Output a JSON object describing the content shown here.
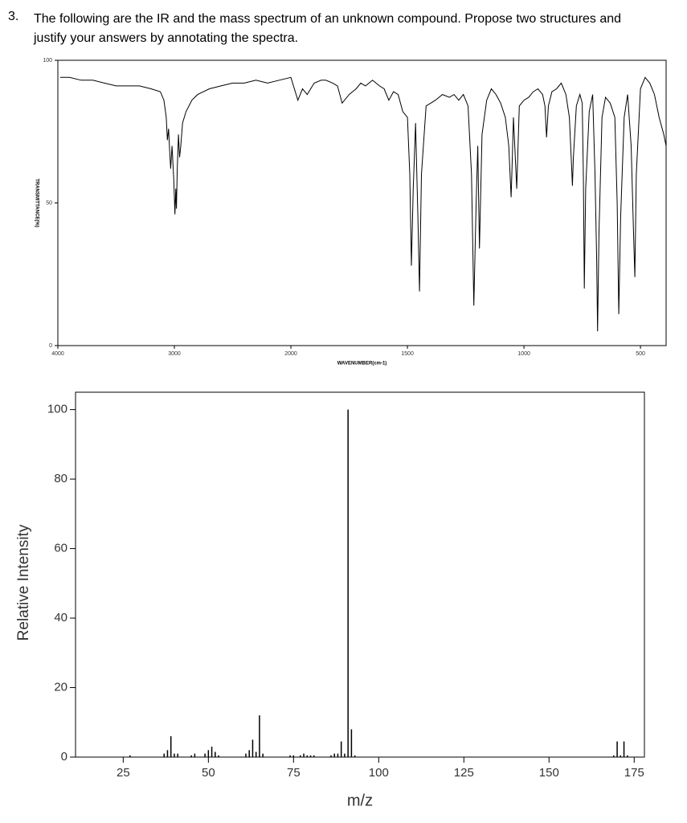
{
  "question_number": "3.",
  "question": "The following are the IR and the mass spectrum of an unknown compound. Propose two structures and justify your answers by annotating the spectra.",
  "chart_data": [
    {
      "type": "line",
      "xlabel": "WAVENUMBER(cm-1)",
      "ylabel": "TRANSMITTANCE(%)",
      "xlim": [
        4000,
        390
      ],
      "ylim": [
        0,
        100
      ],
      "xticks": [
        4000,
        3000,
        2000,
        1500,
        1000,
        500
      ],
      "yticks": [
        0,
        50,
        100
      ],
      "color": "#000000",
      "series": [
        {
          "name": "IR",
          "color": "#000000",
          "x": [
            3980,
            3900,
            3800,
            3700,
            3600,
            3500,
            3400,
            3300,
            3200,
            3120,
            3090,
            3070,
            3060,
            3050,
            3040,
            3032,
            3020,
            3005,
            2995,
            2988,
            2982,
            2975,
            2965,
            2955,
            2945,
            2930,
            2900,
            2850,
            2800,
            2700,
            2600,
            2500,
            2400,
            2300,
            2200,
            2100,
            2000,
            1970,
            1950,
            1930,
            1900,
            1870,
            1850,
            1820,
            1800,
            1780,
            1750,
            1720,
            1700,
            1680,
            1650,
            1620,
            1600,
            1580,
            1560,
            1540,
            1520,
            1500,
            1490,
            1483,
            1475,
            1465,
            1455,
            1448,
            1440,
            1420,
            1400,
            1380,
            1350,
            1320,
            1300,
            1280,
            1260,
            1240,
            1225,
            1215,
            1205,
            1198,
            1191,
            1180,
            1160,
            1140,
            1120,
            1100,
            1080,
            1065,
            1055,
            1052,
            1045,
            1031,
            1020,
            1000,
            980,
            960,
            940,
            920,
            910,
            903,
            895,
            880,
            860,
            840,
            820,
            805,
            795,
            792,
            788,
            775,
            760,
            750,
            745,
            741,
            735,
            720,
            705,
            695,
            688,
            684,
            678,
            665,
            650,
            630,
            610,
            600,
            593,
            585,
            570,
            555,
            540,
            530,
            524,
            518,
            500,
            480,
            460,
            440,
            420,
            400,
            390
          ],
          "values": [
            94,
            94,
            93,
            93,
            92,
            91,
            91,
            91,
            90,
            89,
            86,
            80,
            72,
            76,
            68,
            62,
            70,
            58,
            46,
            55,
            48,
            62,
            74,
            66,
            70,
            78,
            82,
            86,
            88,
            90,
            91,
            92,
            92,
            93,
            92,
            93,
            94,
            86,
            90,
            88,
            92,
            93,
            93,
            92,
            91,
            85,
            88,
            90,
            92,
            91,
            93,
            91,
            90,
            86,
            89,
            88,
            82,
            80,
            60,
            28,
            55,
            78,
            45,
            19,
            60,
            84,
            85,
            86,
            88,
            87,
            88,
            86,
            88,
            84,
            60,
            14,
            50,
            70,
            34,
            74,
            86,
            90,
            88,
            85,
            80,
            70,
            52,
            60,
            80,
            55,
            84,
            86,
            87,
            89,
            90,
            88,
            84,
            73,
            84,
            89,
            90,
            92,
            88,
            80,
            62,
            56,
            66,
            84,
            88,
            85,
            60,
            20,
            55,
            82,
            88,
            60,
            30,
            5,
            40,
            80,
            87,
            85,
            80,
            50,
            11,
            45,
            80,
            88,
            70,
            40,
            24,
            60,
            90,
            94,
            92,
            88,
            80,
            74,
            70
          ]
        }
      ]
    },
    {
      "type": "bar",
      "xlabel": "m/z",
      "ylabel": "Relative Intensity",
      "xlim": [
        11,
        178
      ],
      "ylim": [
        0,
        105
      ],
      "xticks": [
        25,
        50,
        75,
        100,
        125,
        150,
        175
      ],
      "yticks": [
        0,
        20,
        40,
        60,
        80,
        100
      ],
      "color": "#000000",
      "x": [
        27,
        37,
        38,
        39,
        40,
        41,
        45,
        46,
        49,
        50,
        51,
        52,
        53,
        61,
        62,
        63,
        64,
        65,
        66,
        74,
        75,
        77,
        78,
        79,
        80,
        81,
        86,
        87,
        88,
        89,
        90,
        91,
        92,
        93,
        169,
        170,
        171,
        172,
        173
      ],
      "values": [
        0.5,
        1,
        2,
        6,
        1,
        1,
        0.5,
        1,
        1,
        2,
        3,
        1.5,
        0.5,
        1,
        2,
        5,
        1.5,
        12,
        1,
        0.5,
        0.5,
        0.5,
        1,
        0.5,
        0.5,
        0.5,
        0.5,
        1,
        1,
        4.5,
        1,
        100,
        8,
        0.5,
        0.5,
        4.5,
        0.5,
        4.5,
        0.5
      ]
    }
  ]
}
